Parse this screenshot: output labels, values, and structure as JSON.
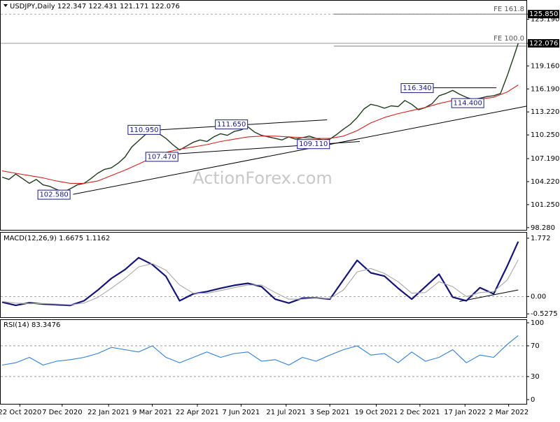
{
  "chart_data": [
    {
      "type": "line",
      "title": "USDJPY,Daily  122.347 122.431 121.171 122.076",
      "watermark": "ActionForex.com",
      "xlim": [
        0,
        385
      ],
      "ylim": [
        97.9,
        127.4
      ],
      "yticks": [
        {
          "value": 125.85,
          "label": "125.850",
          "boxed": true
        },
        {
          "value": 125.19,
          "label": "125.190"
        },
        {
          "value": 122.076,
          "label": "122.076",
          "boxed": true
        },
        {
          "value": 119.16,
          "label": "119.160"
        },
        {
          "value": 116.19,
          "label": "116.190"
        },
        {
          "value": 113.22,
          "label": "113.220"
        },
        {
          "value": 110.25,
          "label": "110.250"
        },
        {
          "value": 107.19,
          "label": "107.190"
        },
        {
          "value": 104.22,
          "label": "104.220"
        },
        {
          "value": 101.25,
          "label": "101.250"
        },
        {
          "value": 98.28,
          "label": "98.280"
        }
      ],
      "series": [
        {
          "name": "USDJPY",
          "color": "#1e3b1e",
          "x": [
            0,
            5,
            10,
            15,
            20,
            25,
            30,
            35,
            40,
            45,
            50,
            55,
            60,
            65,
            70,
            75,
            80,
            85,
            90,
            95,
            100,
            105,
            110,
            115,
            120,
            125,
            130,
            135,
            140,
            145,
            150,
            155,
            160,
            165,
            170,
            175,
            180,
            185,
            190,
            195,
            200,
            205,
            210,
            215,
            220,
            225,
            230,
            235,
            240,
            245,
            250,
            255,
            260,
            265,
            270,
            275,
            280,
            285,
            290,
            295,
            300,
            305,
            310,
            315,
            320,
            325,
            330,
            335,
            340,
            345,
            350,
            355,
            360,
            365,
            370,
            375,
            378
          ],
          "values": [
            104.8,
            104.5,
            105.2,
            104.6,
            104.0,
            104.5,
            103.8,
            103.6,
            103.2,
            102.9,
            103.3,
            103.8,
            104.0,
            104.6,
            105.3,
            105.8,
            106.0,
            106.6,
            107.4,
            108.7,
            109.5,
            110.3,
            110.6,
            110.4,
            109.8,
            109.0,
            108.3,
            108.8,
            109.3,
            109.6,
            109.4,
            110.0,
            110.4,
            110.2,
            110.7,
            110.9,
            111.3,
            110.6,
            110.2,
            110.0,
            109.8,
            109.6,
            110.0,
            109.7,
            109.9,
            110.1,
            109.8,
            109.6,
            109.7,
            110.3,
            111.0,
            111.6,
            112.5,
            113.6,
            114.2,
            114.0,
            113.7,
            114.0,
            113.9,
            114.7,
            114.2,
            113.5,
            113.8,
            114.3,
            115.3,
            115.6,
            116.0,
            115.5,
            115.1,
            114.8,
            115.0,
            115.2,
            115.3,
            115.6,
            117.9,
            120.5,
            122.076
          ]
        },
        {
          "name": "MA",
          "color": "#d42020",
          "x": [
            0,
            10,
            20,
            30,
            40,
            50,
            60,
            70,
            80,
            90,
            100,
            110,
            120,
            130,
            140,
            150,
            160,
            170,
            180,
            190,
            200,
            210,
            220,
            230,
            240,
            250,
            260,
            270,
            280,
            290,
            300,
            310,
            320,
            330,
            340,
            350,
            360,
            370,
            378
          ],
          "values": [
            105.6,
            105.3,
            105.0,
            104.7,
            104.3,
            104.0,
            104.0,
            104.3,
            105.0,
            105.7,
            106.5,
            107.3,
            108.0,
            108.4,
            108.7,
            109.0,
            109.4,
            109.7,
            110.0,
            110.1,
            110.1,
            110.0,
            109.9,
            109.8,
            109.8,
            110.1,
            110.8,
            111.8,
            112.5,
            113.0,
            113.4,
            113.8,
            114.3,
            114.7,
            114.8,
            114.9,
            115.1,
            115.8,
            116.7
          ]
        }
      ],
      "levels": [
        {
          "label": "FE 161.8",
          "value": 125.85,
          "x": 243
        },
        {
          "label": "FE 100.0",
          "value": 122.076,
          "x": 243
        }
      ],
      "trendlines": [
        {
          "x": [
            52,
            385
          ],
          "values": [
            102.58,
            113.96
          ]
        },
        {
          "x": [
            115,
            238
          ],
          "values": [
            110.9,
            112.2
          ]
        },
        {
          "x": [
            115,
            262
          ],
          "values": [
            107.65,
            109.4
          ]
        },
        {
          "x": [
            316,
            362
          ],
          "values": [
            116.34,
            116.34
          ]
        }
      ],
      "annotations": [
        {
          "label": "102.580",
          "value": 102.58,
          "x": 38
        },
        {
          "label": "110.950",
          "value": 110.95,
          "x": 104
        },
        {
          "label": "107.470",
          "value": 107.47,
          "x": 117
        },
        {
          "label": "111.650",
          "value": 111.65,
          "x": 168
        },
        {
          "label": "109.110",
          "value": 109.11,
          "x": 228
        },
        {
          "label": "116.340",
          "value": 116.34,
          "x": 304
        },
        {
          "label": "114.400",
          "value": 114.4,
          "x": 341
        }
      ]
    },
    {
      "type": "line",
      "title": "MACD(12,26,9) 1.6675 1.1162",
      "xlim": [
        0,
        385
      ],
      "ylim": [
        -0.65,
        1.94
      ],
      "yticks": [
        1.772,
        {
          "value": 0,
          "label": "0.00"
        },
        -0.5275
      ],
      "levels": [
        0
      ],
      "series": [
        {
          "name": "MACD",
          "color": "#14147a",
          "x": [
            0,
            10,
            20,
            30,
            40,
            50,
            60,
            70,
            80,
            90,
            100,
            110,
            120,
            130,
            140,
            150,
            160,
            170,
            180,
            190,
            200,
            210,
            220,
            230,
            240,
            250,
            260,
            270,
            280,
            290,
            300,
            310,
            320,
            330,
            340,
            350,
            360,
            370,
            378
          ],
          "values": [
            -0.17,
            -0.27,
            -0.19,
            -0.23,
            -0.25,
            -0.27,
            -0.13,
            0.19,
            0.55,
            0.82,
            1.18,
            0.97,
            0.61,
            -0.13,
            0.08,
            0.15,
            0.25,
            0.34,
            0.4,
            0.3,
            -0.08,
            -0.2,
            -0.05,
            -0.04,
            -0.08,
            0.51,
            1.1,
            0.72,
            0.62,
            0.25,
            -0.08,
            0.3,
            0.68,
            -0.02,
            -0.13,
            0.27,
            0.08,
            0.93,
            1.6675
          ]
        },
        {
          "name": "Signal",
          "color": "#a8a8a8",
          "x": [
            0,
            10,
            20,
            30,
            40,
            50,
            60,
            70,
            80,
            90,
            100,
            110,
            120,
            130,
            140,
            150,
            160,
            170,
            180,
            190,
            200,
            210,
            220,
            230,
            240,
            250,
            260,
            270,
            280,
            290,
            300,
            310,
            320,
            330,
            340,
            350,
            360,
            370,
            378
          ],
          "values": [
            -0.15,
            -0.2,
            -0.22,
            -0.21,
            -0.23,
            -0.25,
            -0.2,
            -0.03,
            0.25,
            0.55,
            0.9,
            1.0,
            0.8,
            0.35,
            0.1,
            0.1,
            0.18,
            0.27,
            0.35,
            0.35,
            0.12,
            -0.08,
            -0.08,
            -0.05,
            -0.06,
            0.2,
            0.75,
            0.85,
            0.7,
            0.45,
            0.1,
            0.12,
            0.45,
            0.3,
            0.0,
            0.12,
            0.15,
            0.5,
            1.1162
          ]
        }
      ],
      "trendlines": [
        {
          "x": [
            335,
            378
          ],
          "values": [
            -0.15,
            0.2
          ]
        }
      ]
    },
    {
      "type": "line",
      "title": "RSI(14) 83.3476",
      "xlim": [
        0,
        385
      ],
      "ylim": [
        -5.5,
        103.6
      ],
      "yticks": [
        100,
        70,
        30,
        0
      ],
      "levels": [
        70,
        30
      ],
      "xticks": [
        {
          "value": 13,
          "label": "22 Oct 2020"
        },
        {
          "value": 44,
          "label": "7 Dec 2020"
        },
        {
          "value": 78,
          "label": "22 Jan 2021"
        },
        {
          "value": 110,
          "label": "9 Mar 2021"
        },
        {
          "value": 143,
          "label": "22 Apr 2021"
        },
        {
          "value": 175,
          "label": "7 Jun 2021"
        },
        {
          "value": 208,
          "label": "21 Jul 2021"
        },
        {
          "value": 240,
          "label": "3 Sep 2021"
        },
        {
          "value": 274,
          "label": "19 Oct 2021"
        },
        {
          "value": 306,
          "label": "2 Dec 2021"
        },
        {
          "value": 339,
          "label": "17 Jan 2022"
        },
        {
          "value": 371,
          "label": "2 Mar 2022"
        }
      ],
      "series": [
        {
          "name": "RSI",
          "color": "#2f7fd8",
          "x": [
            0,
            10,
            20,
            30,
            40,
            50,
            60,
            70,
            80,
            90,
            100,
            110,
            120,
            130,
            140,
            150,
            160,
            170,
            180,
            190,
            200,
            210,
            220,
            230,
            240,
            250,
            260,
            270,
            280,
            290,
            300,
            310,
            320,
            330,
            340,
            350,
            360,
            370,
            378
          ],
          "values": [
            45,
            48,
            55,
            45,
            50,
            52,
            55,
            60,
            68,
            65,
            62,
            70,
            55,
            48,
            55,
            62,
            55,
            60,
            62,
            50,
            52,
            45,
            55,
            50,
            58,
            65,
            70,
            58,
            60,
            48,
            62,
            50,
            55,
            65,
            48,
            58,
            55,
            72,
            83.3476
          ]
        }
      ]
    }
  ]
}
